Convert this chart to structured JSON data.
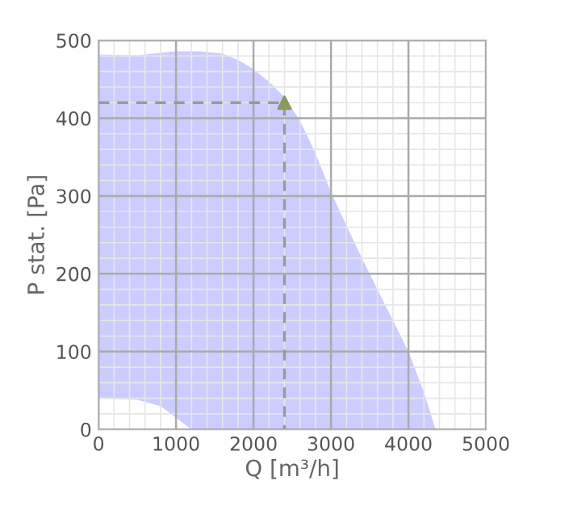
{
  "chart_data": {
    "type": "area",
    "xlabel": "Q [m³/h]",
    "ylabel": "P stat. [Pa]",
    "xlim": [
      0,
      5000
    ],
    "ylim": [
      0,
      500
    ],
    "xticks": [
      0,
      1000,
      2000,
      3000,
      4000,
      5000
    ],
    "yticks": [
      0,
      100,
      200,
      300,
      400,
      500
    ],
    "grid": true,
    "series": [
      {
        "color": "#ccccff",
        "x": [
          0,
          500,
          800,
          1000,
          1200,
          1300,
          1600,
          1800,
          2000,
          2200,
          2400,
          2600,
          2800,
          3000,
          3200,
          3400,
          3600,
          3800,
          4000,
          4200,
          4350
        ],
        "values": [
          482,
          481,
          484,
          486,
          486,
          486,
          483,
          475,
          463,
          447,
          427,
          397,
          355,
          305,
          262,
          220,
          180,
          140,
          100,
          48,
          0
        ]
      },
      {
        "color": "#ffffff",
        "x": [
          0,
          500,
          800,
          1000,
          1200
        ],
        "values": [
          40,
          38,
          30,
          15,
          0
        ]
      },
      {
        "type": "line",
        "color": "#999999",
        "line_style": "dashed",
        "marker": "none",
        "x": [
          0,
          2400,
          2400
        ],
        "values": [
          420,
          420,
          0
        ]
      },
      {
        "type": "scatter",
        "color": "#8a9a5b",
        "marker": "triangle",
        "x": [
          2400
        ],
        "values": [
          420
        ]
      }
    ]
  }
}
